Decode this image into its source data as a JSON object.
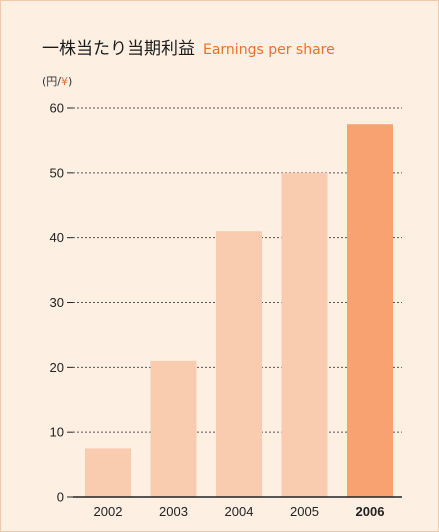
{
  "header": {
    "title_ja": "一株当たり当期利益",
    "title_en": "Earnings per share",
    "unit_prefix": "(円/",
    "unit_yen": "¥",
    "unit_suffix": ")"
  },
  "chart_data": {
    "type": "bar",
    "title": "一株当たり当期利益 Earnings per share",
    "ylabel": "(円/¥)",
    "xlabel": "",
    "categories": [
      "2002",
      "2003",
      "2004",
      "2005",
      "2006"
    ],
    "values": [
      7.5,
      21,
      41,
      50,
      57.5
    ],
    "highlight": "2006",
    "ylim": [
      0,
      60
    ],
    "yticks": [
      0,
      10,
      20,
      30,
      40,
      50,
      60
    ],
    "grid": "dotted horizontal",
    "colors": {
      "bar": "#f9ccaf",
      "highlight_bar": "#f7a270",
      "grid": "#555555",
      "axis": "#222222",
      "accent_text": "#e9702c"
    }
  }
}
